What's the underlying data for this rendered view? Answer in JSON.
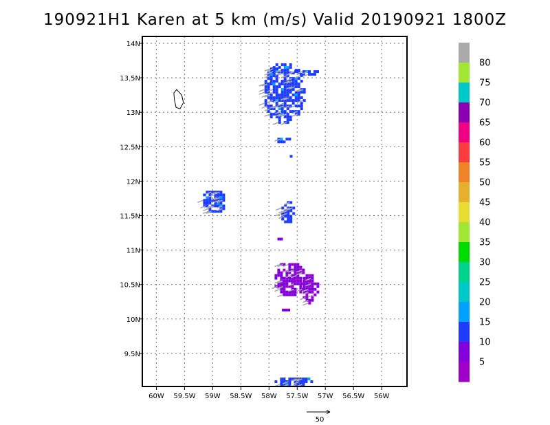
{
  "chart_data": {
    "type": "heatmap",
    "title": "190921H1 Karen at 5 km (m/s) Valid 20190921  1800Z",
    "x_ticks": [
      "60W",
      "59.5W",
      "59W",
      "58.5W",
      "58W",
      "57.5W",
      "57W",
      "56.5W",
      "56W"
    ],
    "y_ticks": [
      "14N",
      "13.5N",
      "13N",
      "12.5N",
      "12N",
      "11.5N",
      "11N",
      "10.5N",
      "10N",
      "9.5N"
    ],
    "xlim_lon_west": [
      60.25,
      55.55
    ],
    "ylim_lat": [
      9.02,
      14.1
    ],
    "grid": true,
    "colorbar": {
      "labels": [
        "5",
        "10",
        "15",
        "20",
        "25",
        "30",
        "35",
        "40",
        "45",
        "50",
        "55",
        "60",
        "65",
        "70",
        "75",
        "80"
      ],
      "colors": [
        "#a000c8",
        "#8200dc",
        "#1e3cff",
        "#00a0ff",
        "#00c8c8",
        "#00d28c",
        "#00dc00",
        "#a0e632",
        "#e6dc32",
        "#e6af2d",
        "#f08228",
        "#fa3c3c",
        "#f00082",
        "#8c00b4",
        "#00c8c8",
        "#a0e632",
        "#aaaaaa"
      ]
    },
    "vector_reference": {
      "label": "50",
      "value": 50
    },
    "wind_regions": [
      {
        "lon": 57.75,
        "lat": 13.3,
        "rlon": 0.38,
        "rlat": 0.45,
        "band": 2
      },
      {
        "lon": 57.4,
        "lat": 13.6,
        "rlon": 0.25,
        "rlat": 0.05,
        "band": 2
      },
      {
        "lon": 57.95,
        "lat": 13.62,
        "rlon": 0.08,
        "rlat": 0.07,
        "band": 2
      },
      {
        "lon": 57.8,
        "lat": 12.62,
        "rlon": 0.15,
        "rlat": 0.05,
        "band": 2
      },
      {
        "lon": 57.65,
        "lat": 12.35,
        "rlon": 0.03,
        "rlat": 0.07,
        "band": 2
      },
      {
        "lon": 59.0,
        "lat": 11.72,
        "rlon": 0.22,
        "rlat": 0.18,
        "band": 2
      },
      {
        "lon": 57.7,
        "lat": 11.55,
        "rlon": 0.13,
        "rlat": 0.2,
        "band": 2
      },
      {
        "lon": 57.85,
        "lat": 11.17,
        "rlon": 0.05,
        "rlat": 0.05,
        "band": 1
      },
      {
        "lon": 57.65,
        "lat": 10.6,
        "rlon": 0.3,
        "rlat": 0.25,
        "band": 1
      },
      {
        "lon": 57.3,
        "lat": 10.47,
        "rlon": 0.15,
        "rlat": 0.22,
        "band": 1
      },
      {
        "lon": 57.7,
        "lat": 10.15,
        "rlon": 0.12,
        "rlat": 0.04,
        "band": 1
      },
      {
        "lon": 57.6,
        "lat": 9.12,
        "rlon": 0.35,
        "rlat": 0.07,
        "band": 2
      }
    ],
    "island_outline_lonlat": [
      [
        59.64,
        13.33
      ],
      [
        59.55,
        13.25
      ],
      [
        59.52,
        13.14
      ],
      [
        59.58,
        13.05
      ],
      [
        59.65,
        13.07
      ],
      [
        59.68,
        13.18
      ],
      [
        59.69,
        13.28
      ],
      [
        59.64,
        13.33
      ]
    ]
  }
}
